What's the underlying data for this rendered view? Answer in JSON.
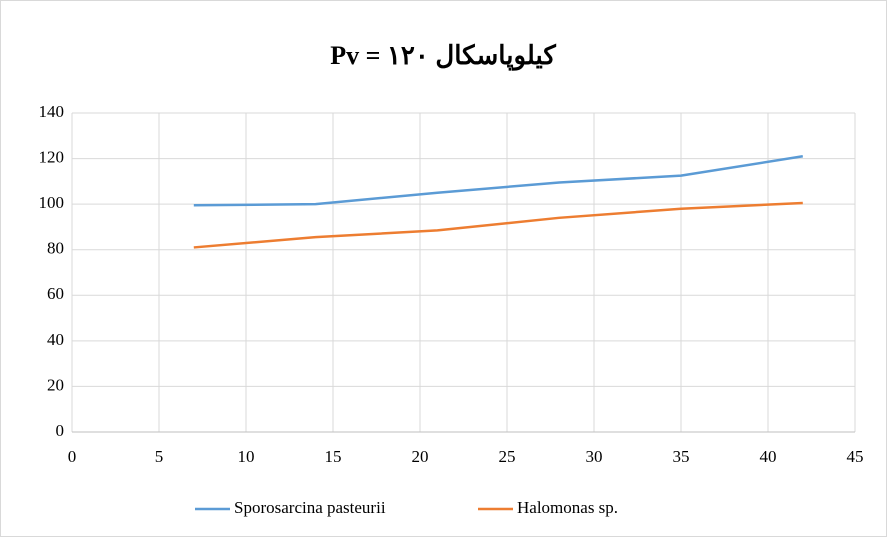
{
  "chart_data": {
    "type": "line",
    "title": "Pv = ۱۲۰ کیلوپاسکال",
    "x": [
      7,
      14,
      21,
      28,
      35,
      42
    ],
    "series": [
      {
        "name": "Sporosarcina pasteurii",
        "color": "#5b9bd5",
        "values": [
          99.5,
          100,
          105,
          109.5,
          112.5,
          121
        ]
      },
      {
        "name": "Halomonas sp.",
        "color": "#ed7d31",
        "values": [
          81,
          85.5,
          88.5,
          94,
          98,
          100.5
        ]
      }
    ],
    "xlim": [
      0,
      45
    ],
    "xticks": [
      0,
      5,
      10,
      15,
      20,
      25,
      30,
      35,
      40,
      45
    ],
    "ylim": [
      0,
      140
    ],
    "yticks": [
      0,
      20,
      40,
      60,
      80,
      100,
      120,
      140
    ],
    "grid": true,
    "legend": "bottom"
  }
}
